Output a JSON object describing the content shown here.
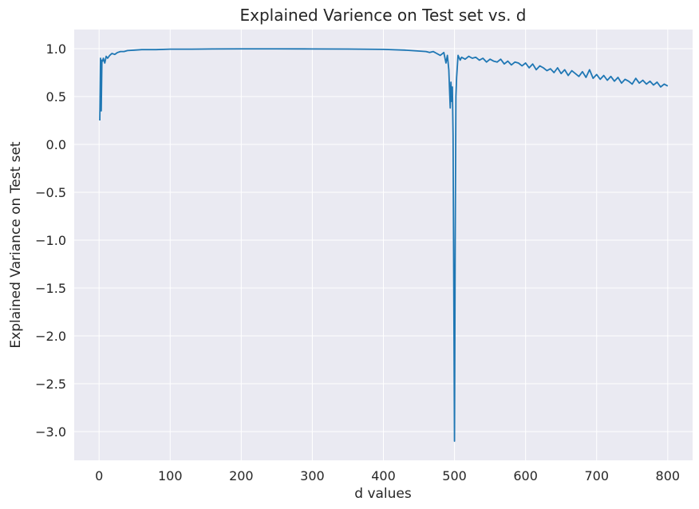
{
  "chart_data": {
    "type": "line",
    "title": "Explained Varience on Test set vs. d",
    "xlabel": "d values",
    "ylabel": "Explained Variance on Test set",
    "xlim": [
      -35,
      835
    ],
    "ylim": [
      -3.3,
      1.2
    ],
    "x_ticks": [
      0,
      100,
      200,
      300,
      400,
      500,
      600,
      700,
      800
    ],
    "y_ticks": [
      1.0,
      0.5,
      0.0,
      -0.5,
      -1.0,
      -1.5,
      -2.0,
      -2.5,
      -3.0
    ],
    "x_tick_labels": [
      "0",
      "100",
      "200",
      "300",
      "400",
      "500",
      "600",
      "700",
      "800"
    ],
    "y_tick_labels": [
      "1.0",
      "0.5",
      "0.0",
      "−0.5",
      "−1.0",
      "−1.5",
      "−2.0",
      "−2.5",
      "−3.0"
    ],
    "grid": true,
    "colors": {
      "line": "#1f77b4",
      "plot_bg": "#eaeaf2",
      "grid": "#ffffff"
    },
    "series": [
      {
        "values_x": [
          1,
          2,
          3,
          4,
          5,
          6,
          8,
          10,
          12,
          15,
          18,
          22,
          26,
          30,
          35,
          40,
          50,
          60,
          80,
          100,
          130,
          160,
          200,
          250,
          300,
          350,
          400,
          430,
          450,
          460,
          465,
          470,
          475,
          480,
          485,
          488,
          490,
          492,
          494,
          495,
          496,
          497,
          498,
          499,
          500,
          501,
          502,
          503,
          505,
          508,
          510,
          515,
          520,
          525,
          530,
          535,
          540,
          545,
          550,
          555,
          560,
          565,
          570,
          575,
          580,
          585,
          590,
          595,
          600,
          605,
          610,
          615,
          620,
          625,
          630,
          635,
          640,
          645,
          650,
          655,
          660,
          665,
          670,
          675,
          680,
          685,
          690,
          695,
          700,
          705,
          710,
          715,
          720,
          725,
          730,
          735,
          740,
          745,
          750,
          755,
          760,
          765,
          770,
          775,
          780,
          785,
          790,
          795,
          800
        ],
        "values_y": [
          0.25,
          0.9,
          0.35,
          0.88,
          0.87,
          0.9,
          0.85,
          0.92,
          0.9,
          0.93,
          0.95,
          0.94,
          0.96,
          0.97,
          0.97,
          0.98,
          0.985,
          0.99,
          0.99,
          0.995,
          0.995,
          0.997,
          0.998,
          0.998,
          0.997,
          0.996,
          0.993,
          0.985,
          0.975,
          0.97,
          0.96,
          0.97,
          0.95,
          0.93,
          0.96,
          0.85,
          0.93,
          0.78,
          0.38,
          0.65,
          0.45,
          0.6,
          0.1,
          -1.5,
          -3.1,
          -1.0,
          0.5,
          0.7,
          0.93,
          0.88,
          0.91,
          0.89,
          0.92,
          0.9,
          0.91,
          0.88,
          0.9,
          0.86,
          0.89,
          0.87,
          0.86,
          0.89,
          0.84,
          0.87,
          0.83,
          0.86,
          0.85,
          0.82,
          0.85,
          0.8,
          0.84,
          0.78,
          0.82,
          0.8,
          0.77,
          0.79,
          0.75,
          0.8,
          0.74,
          0.78,
          0.72,
          0.77,
          0.74,
          0.71,
          0.76,
          0.7,
          0.78,
          0.69,
          0.73,
          0.68,
          0.72,
          0.67,
          0.71,
          0.66,
          0.7,
          0.64,
          0.68,
          0.66,
          0.63,
          0.69,
          0.64,
          0.67,
          0.63,
          0.66,
          0.62,
          0.65,
          0.6,
          0.63,
          0.61
        ]
      }
    ]
  }
}
